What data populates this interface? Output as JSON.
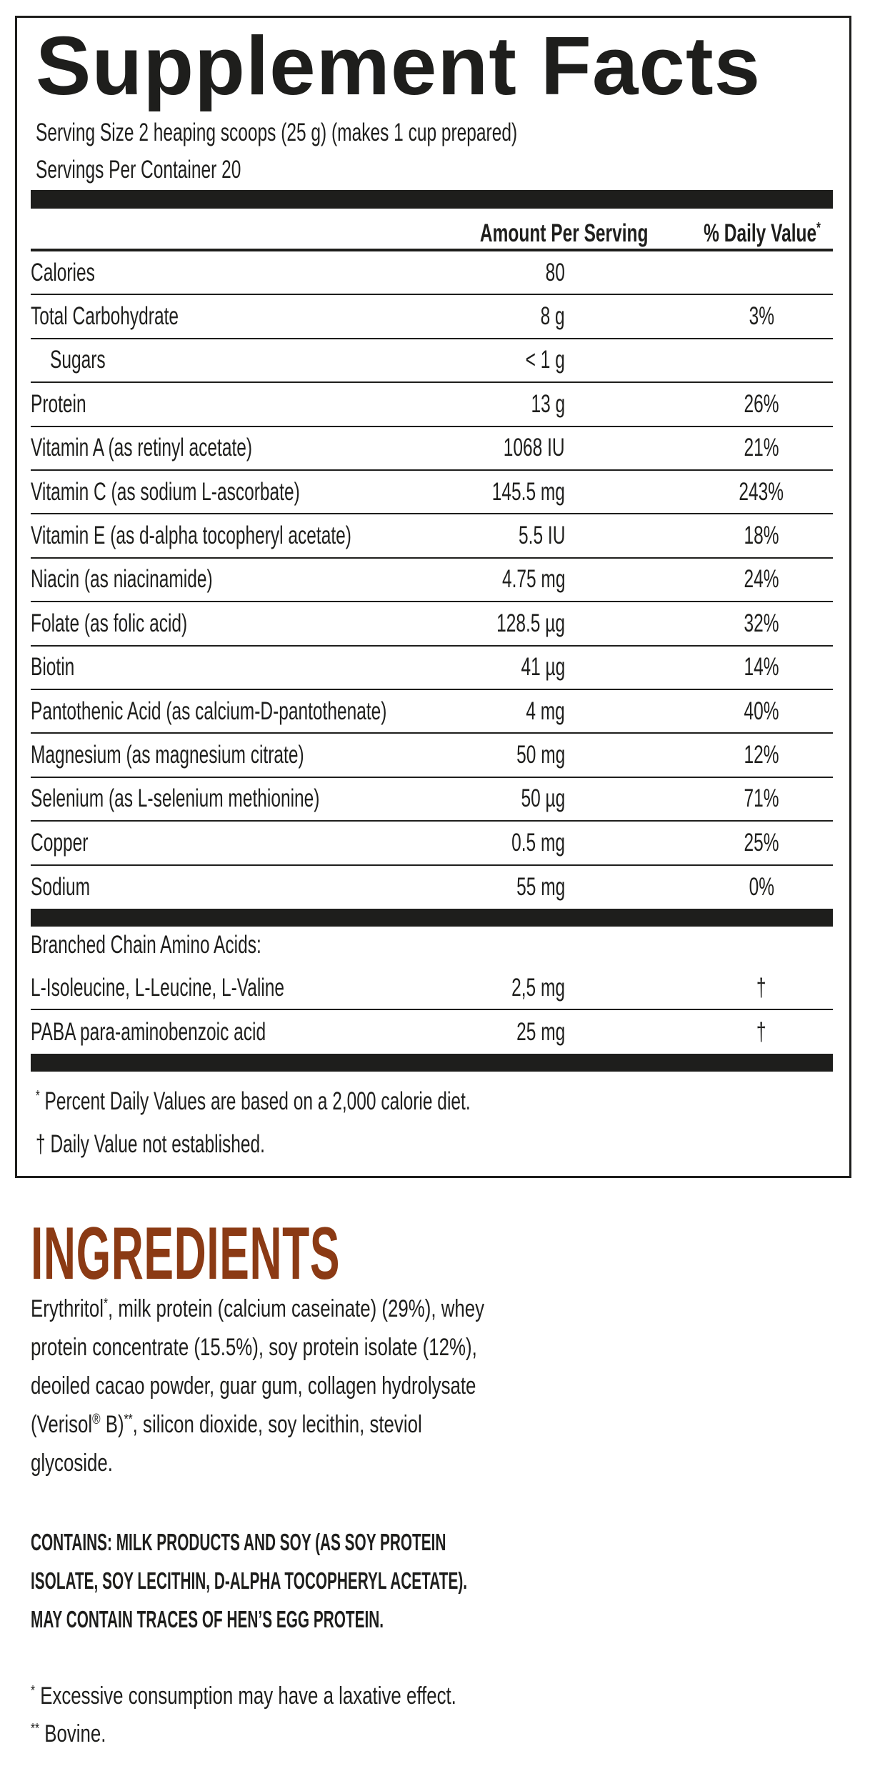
{
  "facts": {
    "title": "Supplement Facts",
    "serving_size": "Serving Size 2 heaping scoops (25 g) (makes 1 cup prepared)",
    "servings_per_container": "Servings Per Container 20",
    "header_amount": "Amount Per Serving",
    "header_dv": "% Daily Value",
    "header_dv_mark": "*",
    "rows": [
      {
        "name": "Calories",
        "amount": "80",
        "dv": ""
      },
      {
        "name": "Total Carbohydrate",
        "amount": "8 g",
        "dv": "3%"
      },
      {
        "name": "Sugars",
        "amount": "< 1 g",
        "dv": "",
        "indent": true
      },
      {
        "name": "Protein",
        "amount": "13 g",
        "dv": "26%"
      },
      {
        "name": "Vitamin A (as retinyl acetate)",
        "amount": "1068 IU",
        "dv": "21%"
      },
      {
        "name": "Vitamin C (as sodium L-ascorbate)",
        "amount": "145.5 mg",
        "dv": "243%"
      },
      {
        "name": "Vitamin E (as d-alpha tocopheryl acetate)",
        "amount": "5.5 IU",
        "dv": "18%"
      },
      {
        "name": "Niacin (as niacinamide)",
        "amount": "4.75 mg",
        "dv": "24%"
      },
      {
        "name": "Folate (as folic acid)",
        "amount": "128.5 µg",
        "dv": "32%"
      },
      {
        "name": "Biotin",
        "amount": "41 µg",
        "dv": "14%"
      },
      {
        "name": "Pantothenic Acid (as calcium-D-pantothenate)",
        "amount": "4 mg",
        "dv": "40%"
      },
      {
        "name": "Magnesium (as magnesium citrate)",
        "amount": "50 mg",
        "dv": "12%"
      },
      {
        "name": "Selenium (as L-selenium methionine)",
        "amount": "50 µg",
        "dv": "71%"
      },
      {
        "name": "Copper",
        "amount": "0.5 mg",
        "dv": "25%"
      },
      {
        "name": "Sodium",
        "amount": "55 mg",
        "dv": "0%"
      }
    ],
    "bcaa_heading": "Branched Chain Amino Acids:",
    "other_rows": [
      {
        "name": "L-Isoleucine, L-Leucine, L-Valine",
        "amount": "2,5 mg",
        "dv": "†"
      },
      {
        "name": "PABA para-aminobenzoic acid",
        "amount": "25 mg",
        "dv": "†"
      }
    ],
    "footnote_mark_1": "*",
    "footnote_1": "Percent Daily Values are based on a 2,000 calorie diet.",
    "footnote_mark_2": "†",
    "footnote_2": "Daily Value not established."
  },
  "ingredients": {
    "title": "INGREDIENTS",
    "lines": [
      [
        {
          "t": "Erythritol"
        },
        {
          "sup": "*"
        },
        {
          "t": ", milk protein (calcium caseinate) (29%), whey"
        }
      ],
      [
        {
          "t": "protein concentrate (15.5%), soy protein isolate (12%),"
        }
      ],
      [
        {
          "t": "deoiled cacao powder, guar gum, collagen hydrolysate"
        }
      ],
      [
        {
          "t": "(Verisol"
        },
        {
          "sup": "®"
        },
        {
          "t": " B)"
        },
        {
          "sup": "**"
        },
        {
          "t": ", silicon dioxide, soy lecithin, steviol"
        }
      ],
      [
        {
          "t": "glycoside."
        }
      ]
    ],
    "contains": [
      "CONTAINS: MILK PRODUCTS AND SOY (AS SOY PROTEIN",
      "ISOLATE, SOY LECITHIN, D-ALPHA TOCOPHERYL ACETATE).",
      "MAY CONTAIN TRACES OF HEN’S EGG PROTEIN."
    ],
    "notes": [
      {
        "mark": "*",
        "text": " Excessive consumption may have a laxative effect."
      },
      {
        "mark": "**",
        "text": " Bovine."
      }
    ]
  },
  "colors": {
    "ink": "#1e1e1c",
    "ingredients_heading": "#8b3a14"
  }
}
